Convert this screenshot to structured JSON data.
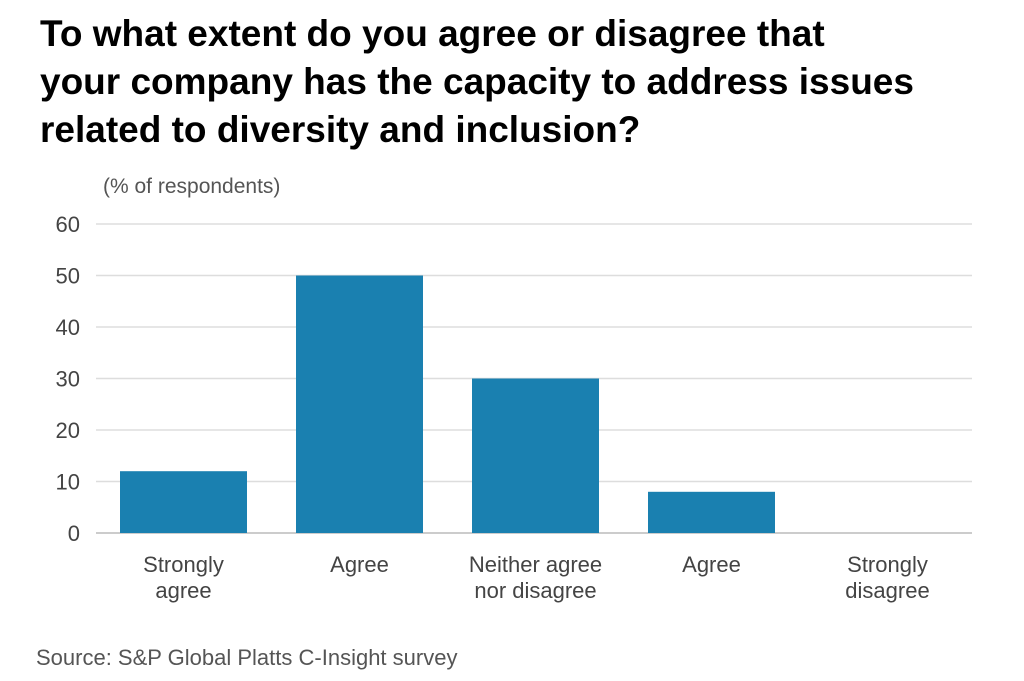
{
  "chart_data": {
    "type": "bar",
    "title": "To what extent do you agree or disagree that\nyour company has the capacity to address issues\nrelated to diversity and inclusion?",
    "ylabel": "(% of respondents)",
    "categories": [
      [
        "Strongly",
        "agree"
      ],
      [
        "Agree"
      ],
      [
        "Neither agree",
        "nor disagree"
      ],
      [
        "Agree"
      ],
      [
        "Strongly",
        "disagree"
      ]
    ],
    "values": [
      12,
      50,
      30,
      8,
      0
    ],
    "ylim": [
      0,
      60
    ],
    "yticks": [
      0,
      10,
      20,
      30,
      40,
      50,
      60
    ],
    "ytick_labels": [
      "0",
      "10",
      "20",
      "30",
      "40",
      "50",
      "60"
    ],
    "grid": true,
    "bar_color": "#1a80b0",
    "grid_color": "#dddddd",
    "axis_color": "#cccccc",
    "source": "Source: S&P Global Platts C-Insight survey"
  }
}
